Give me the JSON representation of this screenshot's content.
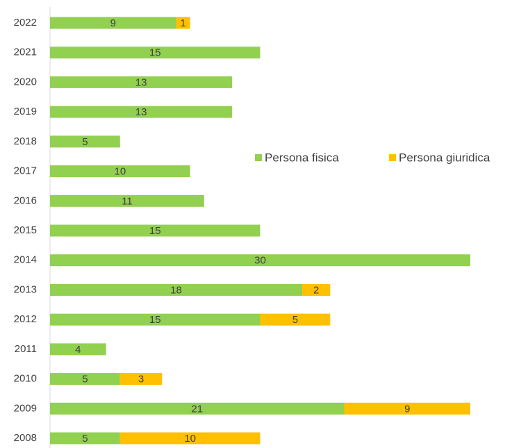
{
  "chart_data": {
    "type": "bar",
    "orientation": "horizontal",
    "stacked": true,
    "categories": [
      "2022",
      "2021",
      "2020",
      "2019",
      "2018",
      "2017",
      "2016",
      "2015",
      "2014",
      "2013",
      "2012",
      "2011",
      "2010",
      "2009",
      "2008"
    ],
    "series": [
      {
        "name": "Persona fisica",
        "color": "#92d050",
        "values": [
          9,
          15,
          13,
          13,
          5,
          10,
          11,
          15,
          30,
          18,
          15,
          4,
          5,
          21,
          5
        ]
      },
      {
        "name": "Persona giuridica",
        "color": "#ffc000",
        "values": [
          1,
          null,
          null,
          null,
          null,
          null,
          null,
          null,
          null,
          2,
          5,
          null,
          3,
          9,
          10
        ]
      }
    ],
    "xlim": [
      0,
      30
    ],
    "legend": "right"
  }
}
